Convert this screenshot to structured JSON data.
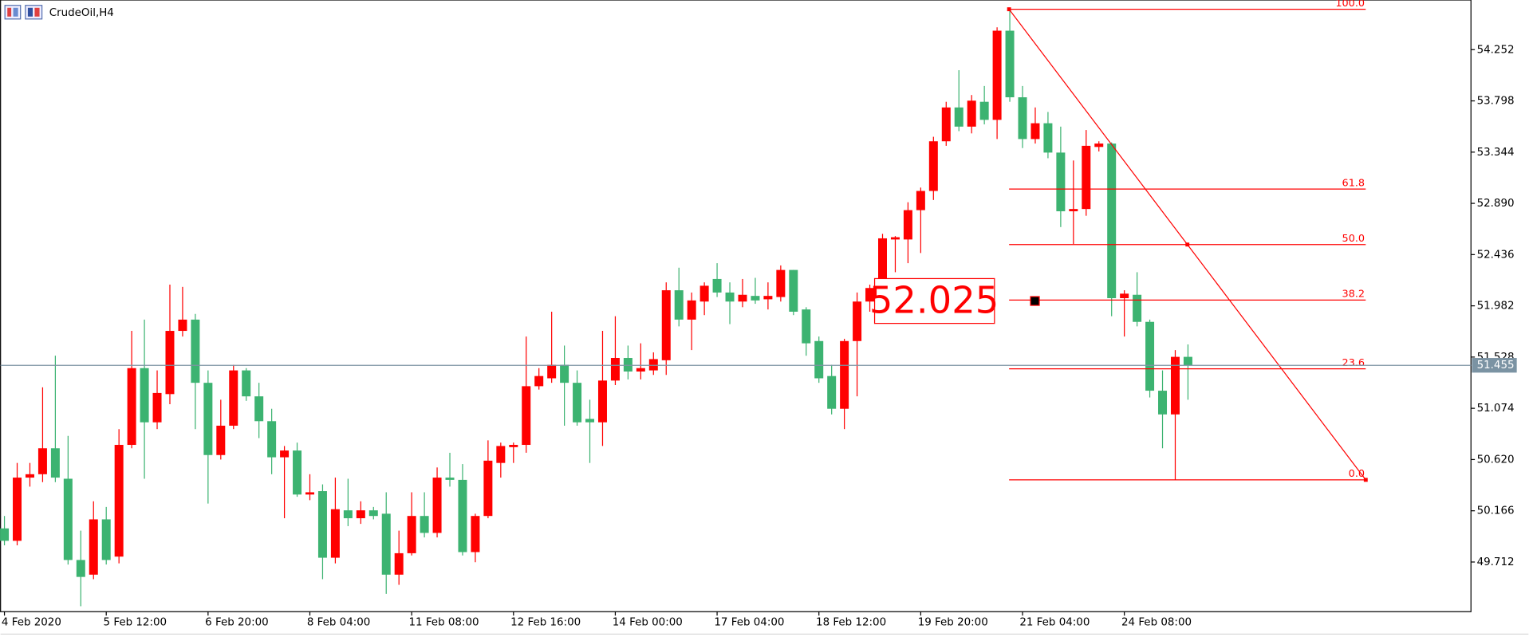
{
  "chart_data": {
    "type": "candlestick",
    "title": "CrudeOil,H4",
    "up_color": "#ff0000",
    "down_color": "#3cb371",
    "categories": [
      "4 Feb 2020",
      null,
      null,
      null,
      null,
      null,
      null,
      null,
      "5 Feb 12:00",
      null,
      null,
      null,
      null,
      null,
      null,
      null,
      "6 Feb 20:00",
      null,
      null,
      null,
      null,
      null,
      null,
      null,
      "8 Feb 04:00",
      null,
      null,
      null,
      null,
      null,
      null,
      null,
      "11 Feb 08:00",
      null,
      null,
      null,
      null,
      null,
      null,
      null,
      "12 Feb 16:00",
      null,
      null,
      null,
      null,
      null,
      null,
      null,
      "14 Feb 00:00",
      null,
      null,
      null,
      null,
      null,
      null,
      null,
      "17 Feb 04:00",
      null,
      null,
      null,
      null,
      null,
      null,
      null,
      "18 Feb 12:00",
      null,
      null,
      null,
      null,
      null,
      null,
      null,
      "19 Feb 20:00",
      null,
      null,
      null,
      null,
      null,
      null,
      null,
      "21 Feb 04:00",
      null,
      null,
      null,
      null,
      null,
      null,
      null,
      "24 Feb 08:00",
      null,
      null,
      null,
      null,
      null
    ],
    "open": [
      50.01,
      49.9,
      50.46,
      50.49,
      50.72,
      50.45,
      49.73,
      49.6,
      50.09,
      49.76,
      50.75,
      51.43,
      50.95,
      51.2,
      51.76,
      51.86,
      51.3,
      50.66,
      50.92,
      51.41,
      51.18,
      50.96,
      50.64,
      50.7,
      50.31,
      50.34,
      49.75,
      50.17,
      50.1,
      50.17,
      50.14,
      49.6,
      49.79,
      50.12,
      49.97,
      50.46,
      50.44,
      49.8,
      50.12,
      50.59,
      50.73,
      50.75,
      51.27,
      51.34,
      51.46,
      51.3,
      50.98,
      50.95,
      51.32,
      51.52,
      51.4,
      51.41,
      51.5,
      52.12,
      51.86,
      52.02,
      52.22,
      52.1,
      52.02,
      52.07,
      52.04,
      52.06,
      52.3,
      51.95,
      51.67,
      51.36,
      51.07,
      51.67,
      52.02,
      52.14,
      52.57,
      52.57,
      52.83,
      53.0,
      53.44,
      53.74,
      53.57,
      53.79,
      53.63,
      54.42,
      53.83,
      53.46,
      53.6,
      53.34,
      52.82,
      52.84,
      53.39,
      53.42,
      52.05,
      52.08,
      51.84,
      51.23,
      51.02,
      51.53
    ],
    "high": [
      50.12,
      50.59,
      50.59,
      51.26,
      51.54,
      50.83,
      49.99,
      50.25,
      50.2,
      50.89,
      51.76,
      51.86,
      51.41,
      52.17,
      52.15,
      51.91,
      51.41,
      51.15,
      51.46,
      51.43,
      51.3,
      51.07,
      50.74,
      50.77,
      50.49,
      50.4,
      50.46,
      50.45,
      50.25,
      50.2,
      50.33,
      49.99,
      50.33,
      50.33,
      50.55,
      50.68,
      50.58,
      50.14,
      50.79,
      50.77,
      50.77,
      51.71,
      51.43,
      51.93,
      51.63,
      51.41,
      51.15,
      51.76,
      51.89,
      51.63,
      51.65,
      51.57,
      52.19,
      52.32,
      52.1,
      52.19,
      52.36,
      52.19,
      52.22,
      52.23,
      52.19,
      52.34,
      52.3,
      51.97,
      51.71,
      51.46,
      51.69,
      52.1,
      52.17,
      52.62,
      52.6,
      52.9,
      53.03,
      53.48,
      53.79,
      54.07,
      53.85,
      53.93,
      54.45,
      54.61,
      53.93,
      53.74,
      53.7,
      53.57,
      53.27,
      53.54,
      53.44,
      53.43,
      52.12,
      52.28,
      51.86,
      51.41,
      51.59,
      51.64
    ],
    "low": [
      49.86,
      49.86,
      50.38,
      50.42,
      50.42,
      49.69,
      49.32,
      49.56,
      49.69,
      49.7,
      50.72,
      50.45,
      50.89,
      51.11,
      51.71,
      50.89,
      50.23,
      50.62,
      50.89,
      51.14,
      50.81,
      50.49,
      50.1,
      50.29,
      50.26,
      49.56,
      49.7,
      50.03,
      50.05,
      50.09,
      49.43,
      49.51,
      49.77,
      49.93,
      49.93,
      50.38,
      49.77,
      49.71,
      50.1,
      50.46,
      50.59,
      50.68,
      51.24,
      51.3,
      50.92,
      50.92,
      50.59,
      50.74,
      51.28,
      51.33,
      51.33,
      51.37,
      51.37,
      51.8,
      51.59,
      51.9,
      52.06,
      51.82,
      51.97,
      52.0,
      51.95,
      52.02,
      51.9,
      51.54,
      51.3,
      51.02,
      50.89,
      51.18,
      51.93,
      52.1,
      52.28,
      52.36,
      52.45,
      52.92,
      53.4,
      53.53,
      53.51,
      53.59,
      53.46,
      53.79,
      53.38,
      53.42,
      53.29,
      52.68,
      52.53,
      52.78,
      53.35,
      51.89,
      51.71,
      51.8,
      51.17,
      50.72,
      50.44,
      51.15
    ],
    "close": [
      49.9,
      50.46,
      50.49,
      50.72,
      50.46,
      49.73,
      49.58,
      50.09,
      49.73,
      50.75,
      51.43,
      50.95,
      51.21,
      51.76,
      51.86,
      51.3,
      50.66,
      50.92,
      51.41,
      51.18,
      50.96,
      50.64,
      50.7,
      50.31,
      50.33,
      49.75,
      50.18,
      50.1,
      50.17,
      50.12,
      49.6,
      49.79,
      50.12,
      49.97,
      50.46,
      50.44,
      49.8,
      50.12,
      50.61,
      50.74,
      50.75,
      51.27,
      51.36,
      51.46,
      51.3,
      50.95,
      50.95,
      51.32,
      51.52,
      51.4,
      51.43,
      51.51,
      52.12,
      51.86,
      52.03,
      52.16,
      52.1,
      52.02,
      52.08,
      52.03,
      52.07,
      52.3,
      51.93,
      51.65,
      51.34,
      51.07,
      51.67,
      52.02,
      52.14,
      52.58,
      52.59,
      52.83,
      53.0,
      53.44,
      53.74,
      53.57,
      53.8,
      53.63,
      54.42,
      53.83,
      53.46,
      53.6,
      53.34,
      52.82,
      52.84,
      53.4,
      53.42,
      52.05,
      52.09,
      51.84,
      51.23,
      51.02,
      51.53,
      51.455
    ],
    "ylim": [
      49.272,
      54.692
    ],
    "yticks": [
      54.252,
      53.798,
      53.344,
      {
        "value": 52.89,
        "label": "52.890"
      },
      52.436,
      51.982,
      51.528,
      51.074,
      {
        "value": 50.62,
        "label": "50.620"
      },
      50.166,
      49.712
    ],
    "last_price": {
      "value": 51.455,
      "color": "#7b93a3"
    },
    "fibonacci": {
      "high": 54.61,
      "low": 50.44,
      "color": "#ff0000",
      "levels": [
        {
          "value": 100,
          "label": "100.0"
        },
        61.8,
        {
          "value": 50,
          "label": "50.0"
        },
        38.2,
        23.6,
        {
          "value": 0,
          "label": "0.0"
        }
      ]
    },
    "annotation": {
      "value": 52.025,
      "color": "#ff0000"
    }
  }
}
